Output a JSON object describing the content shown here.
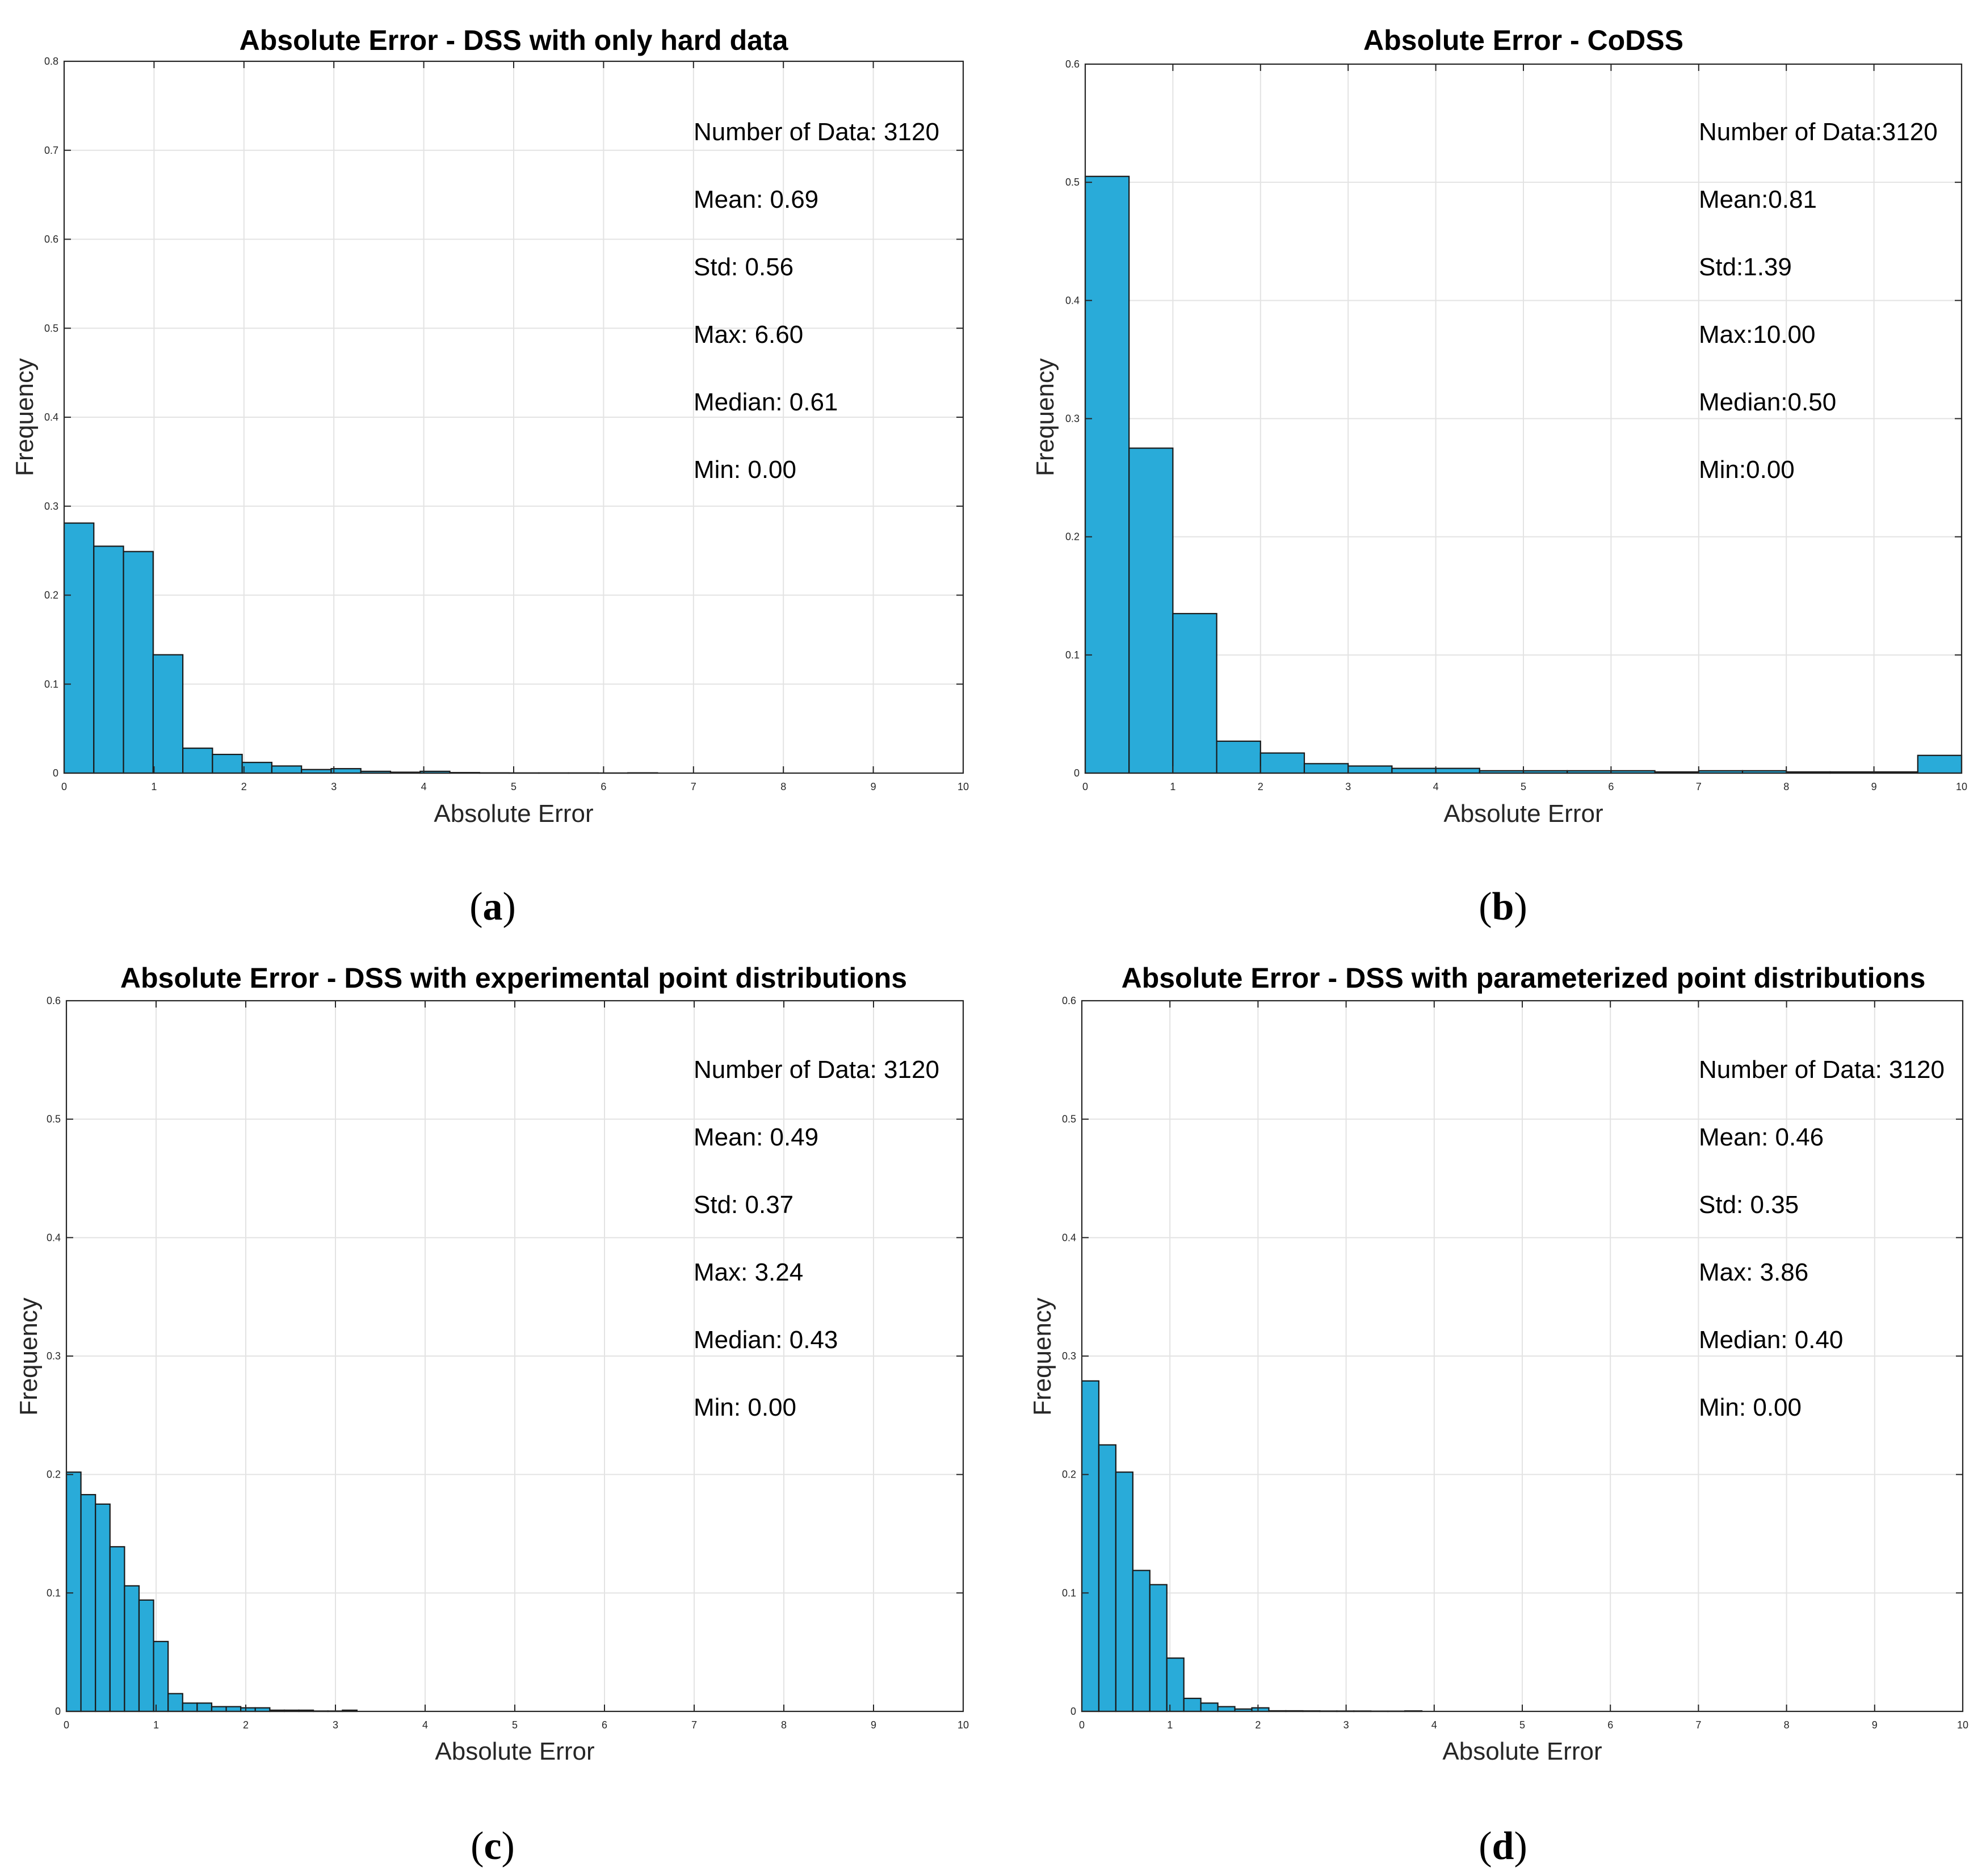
{
  "chart_data": [
    {
      "type": "bar",
      "panel_label": "a",
      "title": "Absolute Error - DSS with only hard data",
      "xlabel": "Absolute Error",
      "ylabel": "Frequency",
      "xlim": [
        0,
        10
      ],
      "ylim": [
        0,
        0.8
      ],
      "xticks": [
        "0",
        "1",
        "2",
        "3",
        "4",
        "5",
        "6",
        "7",
        "8",
        "9",
        "10"
      ],
      "yticks": [
        "0",
        "0.1",
        "0.2",
        "0.3",
        "0.4",
        "0.5",
        "0.6",
        "0.7",
        "0.8"
      ],
      "grid": true,
      "bar_color": "#29abd9",
      "bin_edges": [
        0,
        0.33,
        0.66,
        0.99,
        1.32,
        1.65,
        1.98,
        2.31,
        2.64,
        2.97,
        3.3,
        3.63,
        3.96,
        4.29,
        4.62,
        4.95,
        5.28,
        5.61,
        5.94,
        6.27,
        6.6
      ],
      "values": [
        0.281,
        0.255,
        0.249,
        0.133,
        0.028,
        0.021,
        0.012,
        0.008,
        0.004,
        0.005,
        0.002,
        0.001,
        0.002,
        0.0006,
        0.0003,
        0.0002,
        0.0002,
        0.0002,
        0.0001,
        0.0003
      ],
      "annotations": [
        "Number of Data: 3120",
        "Mean: 0.69",
        "Std: 0.56",
        "Max: 6.60",
        "Median: 0.61",
        "Min: 0.00"
      ]
    },
    {
      "type": "bar",
      "panel_label": "b",
      "title": "Absolute Error - CoDSS",
      "xlabel": "Absolute Error",
      "ylabel": "Frequency",
      "xlim": [
        0,
        10
      ],
      "ylim": [
        0,
        0.6
      ],
      "xticks": [
        "0",
        "1",
        "2",
        "3",
        "4",
        "5",
        "6",
        "7",
        "8",
        "9",
        "10"
      ],
      "yticks": [
        "0",
        "0.1",
        "0.2",
        "0.3",
        "0.4",
        "0.5",
        "0.6"
      ],
      "grid": true,
      "bar_color": "#29abd9",
      "bin_edges": [
        0,
        0.5,
        1,
        1.5,
        2,
        2.5,
        3,
        3.5,
        4,
        4.5,
        5,
        5.5,
        6,
        6.5,
        7,
        7.5,
        8,
        8.5,
        9,
        9.5,
        10
      ],
      "values": [
        0.505,
        0.275,
        0.135,
        0.027,
        0.017,
        0.008,
        0.006,
        0.004,
        0.004,
        0.002,
        0.002,
        0.002,
        0.002,
        0.001,
        0.002,
        0.002,
        0.001,
        0.001,
        0.001,
        0.015
      ],
      "annotations": [
        "Number of Data:3120",
        "Mean:0.81",
        "Std:1.39",
        "Max:10.00",
        "Median:0.50",
        "Min:0.00"
      ]
    },
    {
      "type": "bar",
      "panel_label": "c",
      "title": "Absolute Error - DSS with experimental point distributions",
      "xlabel": "Absolute Error",
      "ylabel": "Frequency",
      "xlim": [
        0,
        10
      ],
      "ylim": [
        0,
        0.6
      ],
      "xticks": [
        "0",
        "1",
        "2",
        "3",
        "4",
        "5",
        "6",
        "7",
        "8",
        "9",
        "10"
      ],
      "yticks": [
        "0",
        "0.1",
        "0.2",
        "0.3",
        "0.4",
        "0.5",
        "0.6"
      ],
      "grid": true,
      "bar_color": "#29abd9",
      "bin_edges": [
        0,
        0.162,
        0.324,
        0.486,
        0.648,
        0.81,
        0.972,
        1.134,
        1.296,
        1.458,
        1.62,
        1.782,
        1.944,
        2.106,
        2.268,
        2.43,
        2.592,
        2.754,
        2.916,
        3.078,
        3.24
      ],
      "values": [
        0.202,
        0.183,
        0.175,
        0.139,
        0.106,
        0.094,
        0.059,
        0.015,
        0.007,
        0.007,
        0.004,
        0.004,
        0.003,
        0.003,
        0.001,
        0.001,
        0.001,
        0.0003,
        0.0003,
        0.001
      ],
      "annotations": [
        "Number of Data: 3120",
        "Mean: 0.49",
        "Std: 0.37",
        "Max: 3.24",
        "Median: 0.43",
        "Min: 0.00"
      ]
    },
    {
      "type": "bar",
      "panel_label": "d",
      "title": "Absolute Error - DSS with parameterized point distributions",
      "xlabel": "Absolute Error",
      "ylabel": "Frequency",
      "xlim": [
        0,
        10
      ],
      "ylim": [
        0,
        0.6
      ],
      "xticks": [
        "0",
        "1",
        "2",
        "3",
        "4",
        "5",
        "6",
        "7",
        "8",
        "9",
        "10"
      ],
      "yticks": [
        "0",
        "0.1",
        "0.2",
        "0.3",
        "0.4",
        "0.5",
        "0.6"
      ],
      "grid": true,
      "bar_color": "#29abd9",
      "bin_edges": [
        0,
        0.193,
        0.386,
        0.579,
        0.772,
        0.965,
        1.158,
        1.351,
        1.544,
        1.737,
        1.93,
        2.123,
        2.316,
        2.509,
        2.702,
        2.895,
        3.088,
        3.281,
        3.474,
        3.667,
        3.86
      ],
      "values": [
        0.279,
        0.225,
        0.202,
        0.119,
        0.107,
        0.045,
        0.011,
        0.007,
        0.004,
        0.002,
        0.003,
        0.0005,
        0.0005,
        0.0004,
        0.0003,
        0.0003,
        0.0003,
        0.0002,
        0.0002,
        0.0004
      ],
      "annotations": [
        "Number of Data: 3120",
        "Mean: 0.46",
        "Std: 0.35",
        "Max: 3.86",
        "Median: 0.40",
        "Min: 0.00"
      ]
    }
  ]
}
